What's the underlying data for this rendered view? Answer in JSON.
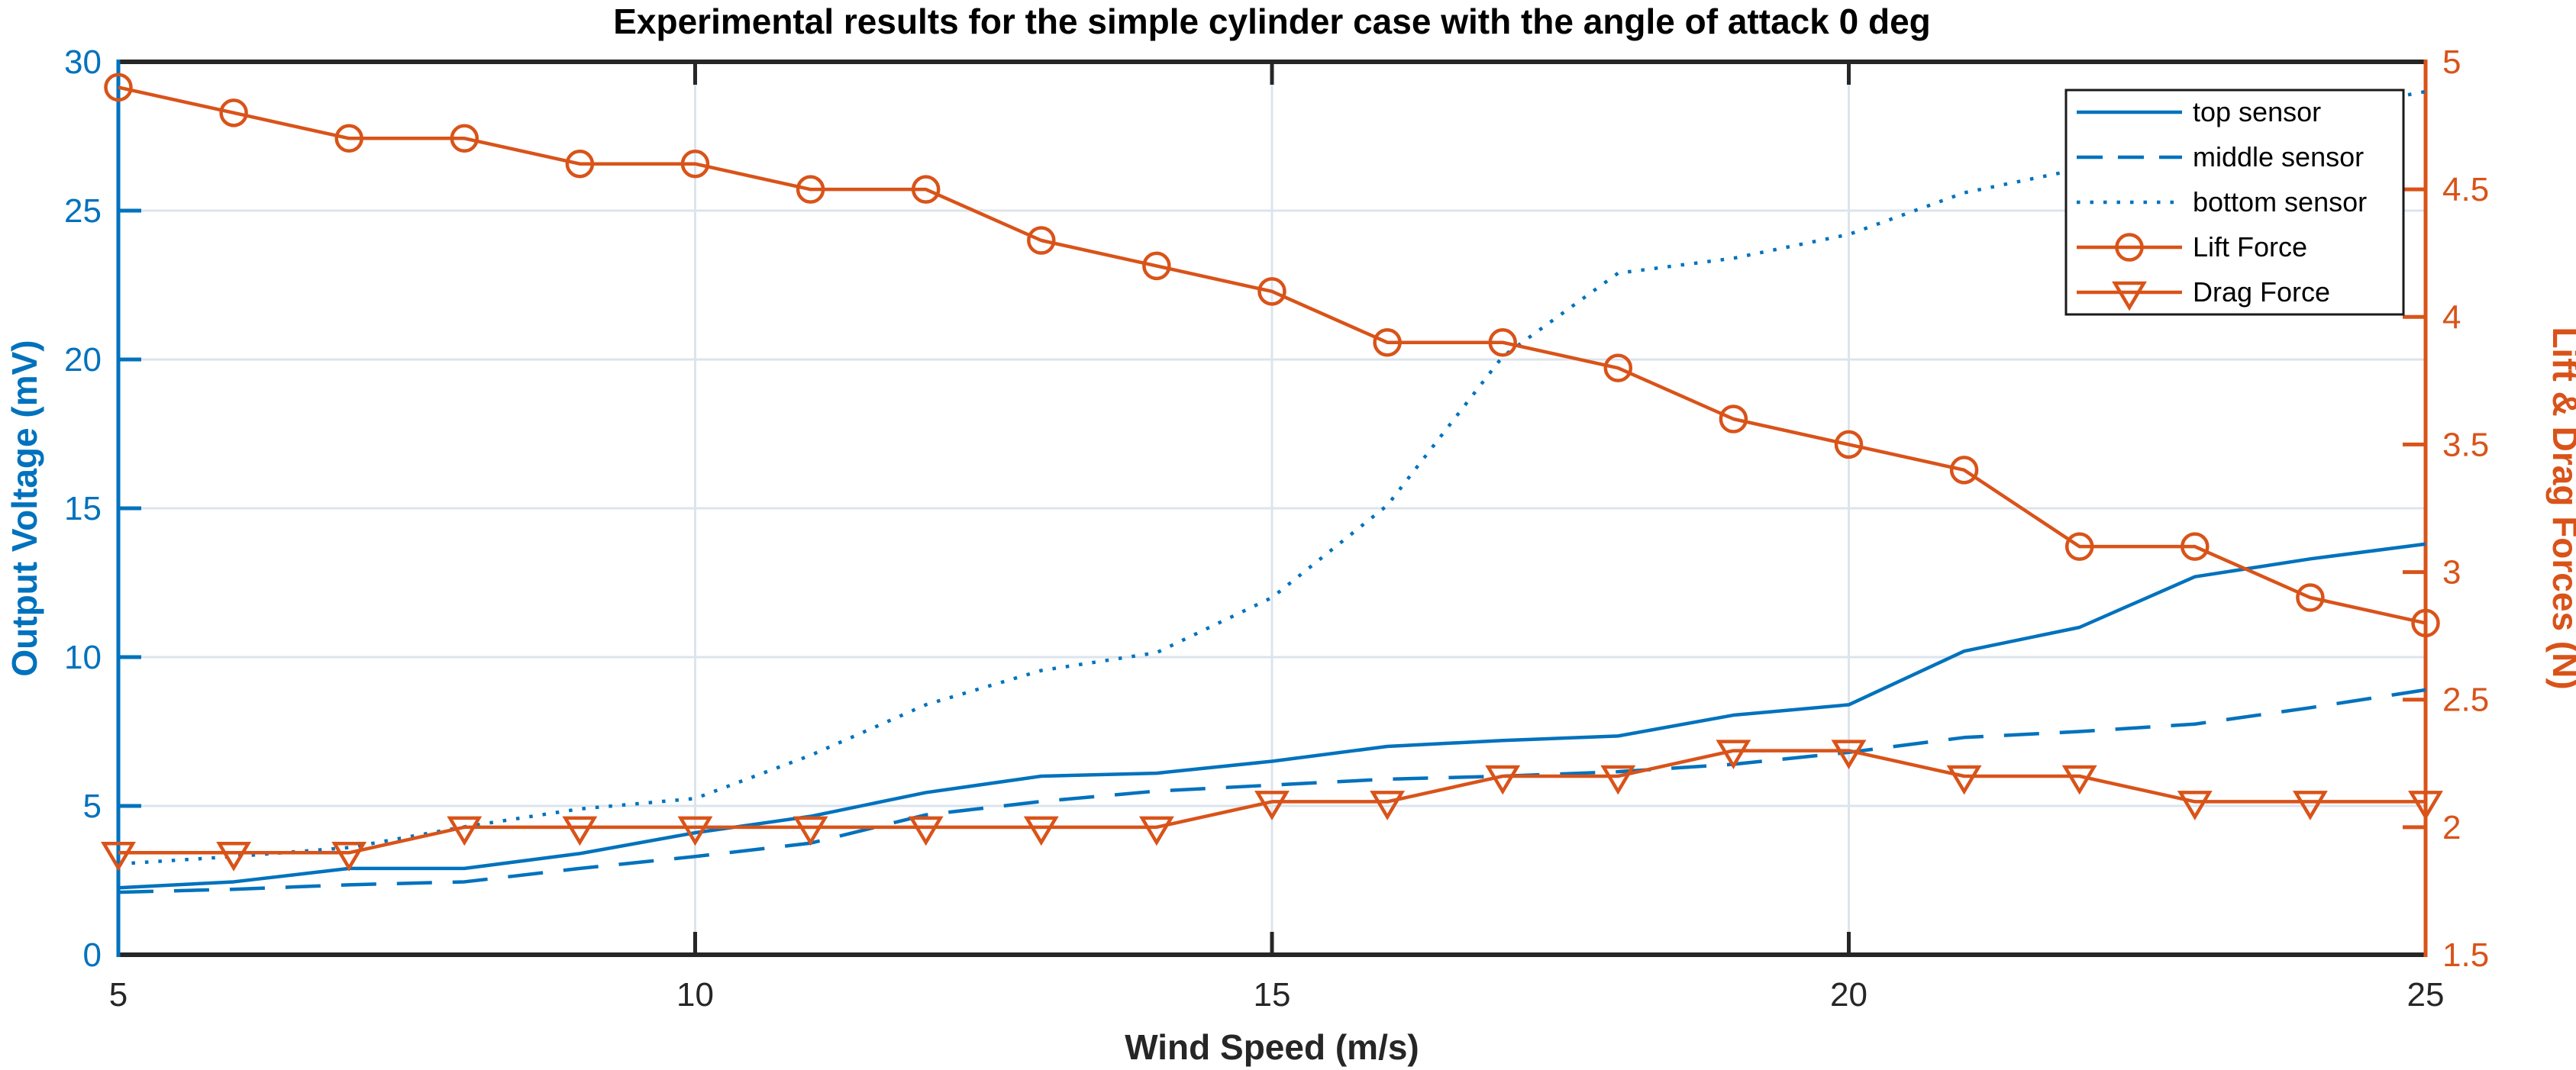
{
  "chart_data": {
    "type": "line",
    "title": "Experimental results for the simple cylinder case with the angle of attack 0 deg",
    "xlabel": "Wind Speed (m/s)",
    "ylabel_left": "Output Voltage (mV)",
    "ylabel_right": "Lift & Drag Forces (N)",
    "xlim": [
      5,
      25
    ],
    "ylim_left": [
      0,
      30
    ],
    "ylim_right": [
      1.5,
      5
    ],
    "xticks": [
      5,
      10,
      15,
      20,
      25
    ],
    "yticks_left": [
      0,
      5,
      10,
      15,
      20,
      25,
      30
    ],
    "yticks_right": [
      1.5,
      2,
      2.5,
      3,
      3.5,
      4,
      4.5,
      5
    ],
    "grid": true,
    "legend_position": "top-right-inside",
    "x": [
      5,
      6,
      7,
      8,
      9,
      10,
      11,
      12,
      13,
      14,
      15,
      16,
      17,
      18,
      19,
      20,
      21,
      22,
      23,
      24,
      25
    ],
    "series": [
      {
        "name": "top sensor",
        "axis": "left",
        "color": "#0072BD",
        "style": "solid",
        "marker": "none",
        "values": [
          2.25,
          2.45,
          2.9,
          2.9,
          3.4,
          4.1,
          4.65,
          5.45,
          6.0,
          6.1,
          6.5,
          7.0,
          7.2,
          7.35,
          8.05,
          8.4,
          10.2,
          11.0,
          12.7,
          13.3,
          13.8
        ]
      },
      {
        "name": "middle sensor",
        "axis": "left",
        "color": "#0072BD",
        "style": "dashed",
        "marker": "none",
        "values": [
          2.1,
          2.2,
          2.35,
          2.45,
          2.9,
          3.3,
          3.75,
          4.7,
          5.15,
          5.5,
          5.7,
          5.9,
          6.0,
          6.15,
          6.4,
          6.8,
          7.3,
          7.5,
          7.75,
          8.3,
          8.9
        ]
      },
      {
        "name": "bottom sensor",
        "axis": "left",
        "color": "#0072BD",
        "style": "dotted",
        "marker": "none",
        "values": [
          3.05,
          3.3,
          3.6,
          4.3,
          4.9,
          5.25,
          6.7,
          8.4,
          9.55,
          10.15,
          12.0,
          15.1,
          20.1,
          22.9,
          23.4,
          24.2,
          25.6,
          26.4,
          27.3,
          28.3,
          29.0
        ]
      },
      {
        "name": "Lift Force",
        "axis": "right",
        "color": "#D95319",
        "style": "solid",
        "marker": "circle",
        "values": [
          4.9,
          4.8,
          4.7,
          4.7,
          4.6,
          4.6,
          4.5,
          4.5,
          4.3,
          4.2,
          4.1,
          3.9,
          3.9,
          3.8,
          3.6,
          3.5,
          3.4,
          3.1,
          3.1,
          2.9,
          2.8
        ]
      },
      {
        "name": "Drag Force",
        "axis": "right",
        "color": "#D95319",
        "style": "solid",
        "marker": "triangle-down",
        "values": [
          1.9,
          1.9,
          1.9,
          2.0,
          2.0,
          2.0,
          2.0,
          2.0,
          2.0,
          2.0,
          2.1,
          2.1,
          2.2,
          2.2,
          2.3,
          2.3,
          2.2,
          2.2,
          2.1,
          2.1,
          2.1
        ]
      }
    ],
    "colors": {
      "left_axis": "#0072BD",
      "right_axis": "#D95319",
      "x_axis": "#262626",
      "grid": "#dce4ed",
      "title": "#000000",
      "legend_border": "#1a1a1a",
      "legend_bg": "#ffffff"
    }
  }
}
